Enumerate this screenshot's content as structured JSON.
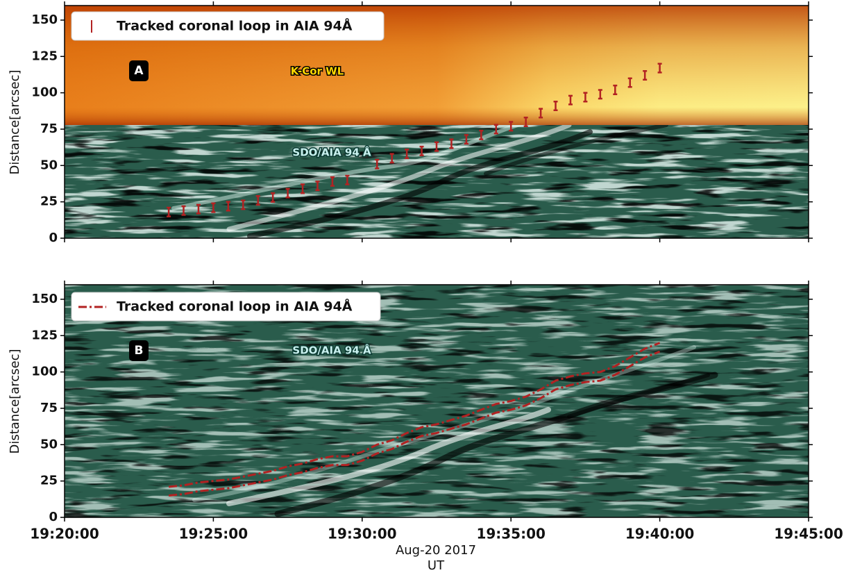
{
  "chart_data": [
    {
      "type": "errorbar",
      "ylabel": "Distance[arcsec]",
      "legend_label": "Tracked coronal loop in  AIA 94Å",
      "panel_label": "A",
      "annotations": [
        "K-Cor WL",
        "SDO/AIA 94 Å"
      ],
      "color": "#b22222",
      "x": [
        "19:23:30",
        "19:24:00",
        "19:24:30",
        "19:25:00",
        "19:25:30",
        "19:26:00",
        "19:26:30",
        "19:27:00",
        "19:27:30",
        "19:28:00",
        "19:28:30",
        "19:29:00",
        "19:29:30",
        "19:30:00",
        "19:30:30",
        "19:31:00",
        "19:31:30",
        "19:32:00",
        "19:32:30",
        "19:33:00",
        "19:33:30",
        "19:34:00",
        "19:34:30",
        "19:35:00",
        "19:35:30",
        "19:36:00",
        "19:36:30",
        "19:37:00",
        "19:37:30",
        "19:38:00",
        "19:38:30",
        "19:39:00",
        "19:39:30",
        "19:40:00"
      ],
      "values": [
        18,
        19,
        20,
        21,
        22,
        23,
        26,
        28,
        31,
        34,
        36,
        39,
        40,
        null,
        51,
        55,
        58,
        60,
        63,
        65,
        68,
        71,
        75,
        77,
        80,
        86,
        91,
        95,
        97,
        99,
        102,
        107,
        112,
        117
      ],
      "errors": [
        3,
        3,
        3,
        3,
        3,
        3,
        3,
        3,
        3,
        3,
        3,
        3,
        3,
        null,
        3,
        3,
        3,
        3,
        3,
        3,
        3,
        3,
        3,
        3,
        3,
        3,
        3,
        3,
        3,
        3,
        3,
        3,
        3,
        3
      ],
      "xlim": [
        "19:20:00",
        "19:45:00"
      ],
      "xticks": [
        "19:20:00",
        "19:25:00",
        "19:30:00",
        "19:35:00",
        "19:40:00",
        "19:45:00"
      ],
      "ylim": [
        0,
        160
      ],
      "yticks": [
        0,
        25,
        50,
        75,
        100,
        125,
        150
      ]
    },
    {
      "type": "line",
      "ylabel": "Distance[arcsec]",
      "legend_label": "Tracked coronal loop in AIA 94Å",
      "panel_label": "B",
      "annotations": [
        "SDO/AIA 94 Å"
      ],
      "xlabel": [
        "Aug-20 2017",
        "UT"
      ],
      "x": [
        "19:23:30",
        "19:24:00",
        "19:24:30",
        "19:25:00",
        "19:25:30",
        "19:26:00",
        "19:26:30",
        "19:27:00",
        "19:27:30",
        "19:28:00",
        "19:28:30",
        "19:29:00",
        "19:29:30",
        "19:30:00",
        "19:30:30",
        "19:31:00",
        "19:31:30",
        "19:32:00",
        "19:32:30",
        "19:33:00",
        "19:33:30",
        "19:34:00",
        "19:34:30",
        "19:35:00",
        "19:35:30",
        "19:36:00",
        "19:36:30",
        "19:37:00",
        "19:37:30",
        "19:38:00",
        "19:38:30",
        "19:39:00",
        "19:39:30",
        "19:40:00"
      ],
      "series": [
        {
          "color": "#b22222",
          "values": [
            21,
            22,
            24,
            25,
            26,
            28,
            30,
            32,
            35,
            37,
            40,
            42,
            42,
            45,
            50,
            53,
            58,
            62,
            64,
            67,
            70,
            74,
            78,
            80,
            83,
            88,
            94,
            97,
            99,
            100,
            104,
            110,
            116,
            120
          ]
        },
        {
          "color": "#b22222",
          "values": [
            15,
            16,
            18,
            19,
            20,
            22,
            24,
            26,
            29,
            31,
            34,
            36,
            36,
            39,
            44,
            47,
            52,
            56,
            58,
            61,
            64,
            68,
            72,
            74,
            77,
            82,
            88,
            91,
            93,
            94,
            98,
            104,
            110,
            114
          ]
        }
      ],
      "xlim": [
        "19:20:00",
        "19:45:00"
      ],
      "xticks": [
        "19:20:00",
        "19:25:00",
        "19:30:00",
        "19:35:00",
        "19:40:00",
        "19:45:00"
      ],
      "ylim": [
        0,
        160
      ],
      "yticks": [
        0,
        25,
        50,
        75,
        100,
        125,
        150
      ]
    }
  ]
}
